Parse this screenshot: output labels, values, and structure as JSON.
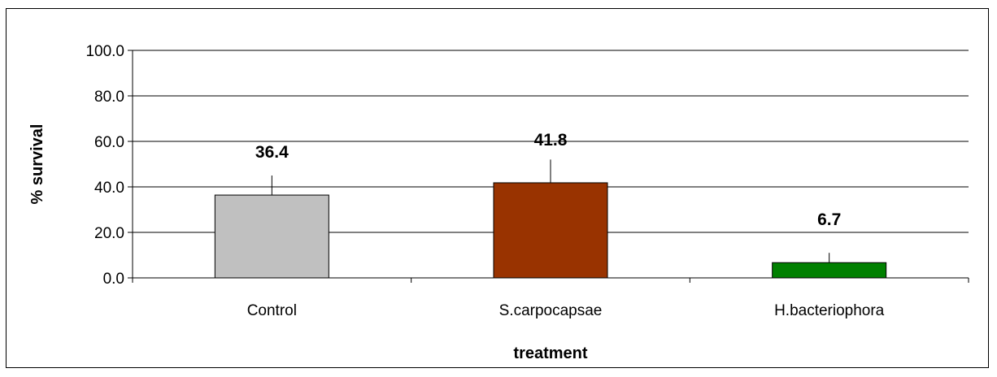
{
  "chart_data": {
    "type": "bar",
    "categories": [
      "Control",
      "S.carpocapsae",
      "H.bacteriophora"
    ],
    "values": [
      36.4,
      41.8,
      6.7
    ],
    "error_upper": [
      45.0,
      52.0,
      11.0
    ],
    "data_labels": [
      "36.4",
      "41.8",
      "6.7"
    ],
    "colors": [
      "#c0c0c0",
      "#993300",
      "#008000"
    ],
    "xlabel": "treatment",
    "ylabel": "% survival",
    "ylim": [
      0,
      100
    ],
    "yticks": [
      0,
      20,
      40,
      60,
      80,
      100
    ],
    "ytick_labels": [
      "0.0",
      "20.0",
      "40.0",
      "60.0",
      "80.0",
      "100.0"
    ],
    "grid": true,
    "legend": "none"
  }
}
